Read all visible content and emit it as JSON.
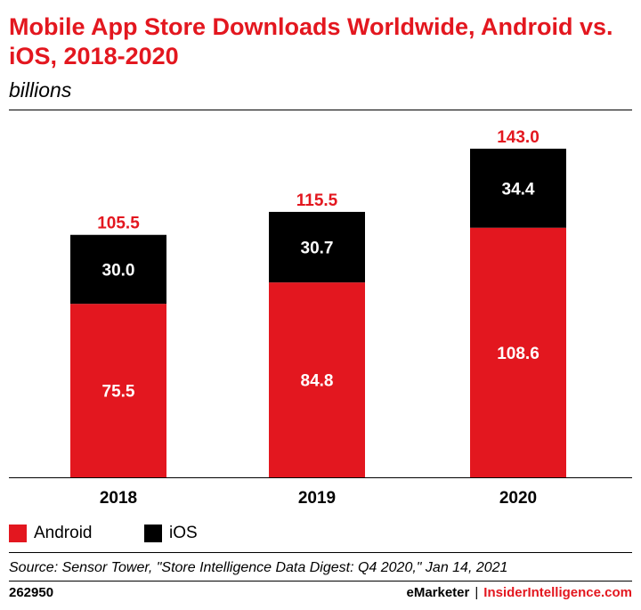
{
  "header": {
    "title": "Mobile App Store Downloads Worldwide, Android vs. iOS, 2018-2020",
    "subtitle": "billions"
  },
  "chart_data": {
    "type": "bar",
    "stacked": true,
    "categories": [
      "2018",
      "2019",
      "2020"
    ],
    "series": [
      {
        "name": "Android",
        "values": [
          75.5,
          84.8,
          108.6
        ],
        "color": "#e3171f"
      },
      {
        "name": "iOS",
        "values": [
          30.0,
          30.7,
          34.4
        ],
        "color": "#000000"
      }
    ],
    "totals": [
      105.5,
      115.5,
      143.0
    ],
    "value_labels": [
      [
        "75.5",
        "84.8",
        "108.6"
      ],
      [
        "30.0",
        "30.7",
        "34.4"
      ]
    ],
    "total_labels": [
      "105.5",
      "115.5",
      "143.0"
    ],
    "ylim": [
      0,
      155
    ],
    "grid": false,
    "legend": "bottom-left"
  },
  "footer": {
    "source": "Source: Sensor Tower, \"Store Intelligence Data Digest: Q4 2020,\" Jan 14, 2021",
    "chart_id": "262950",
    "brand_left": "eMarketer",
    "brand_sep": "|",
    "brand_right": "InsiderIntelligence.com"
  },
  "colors": {
    "accent": "#e3171f",
    "dark": "#000000"
  }
}
